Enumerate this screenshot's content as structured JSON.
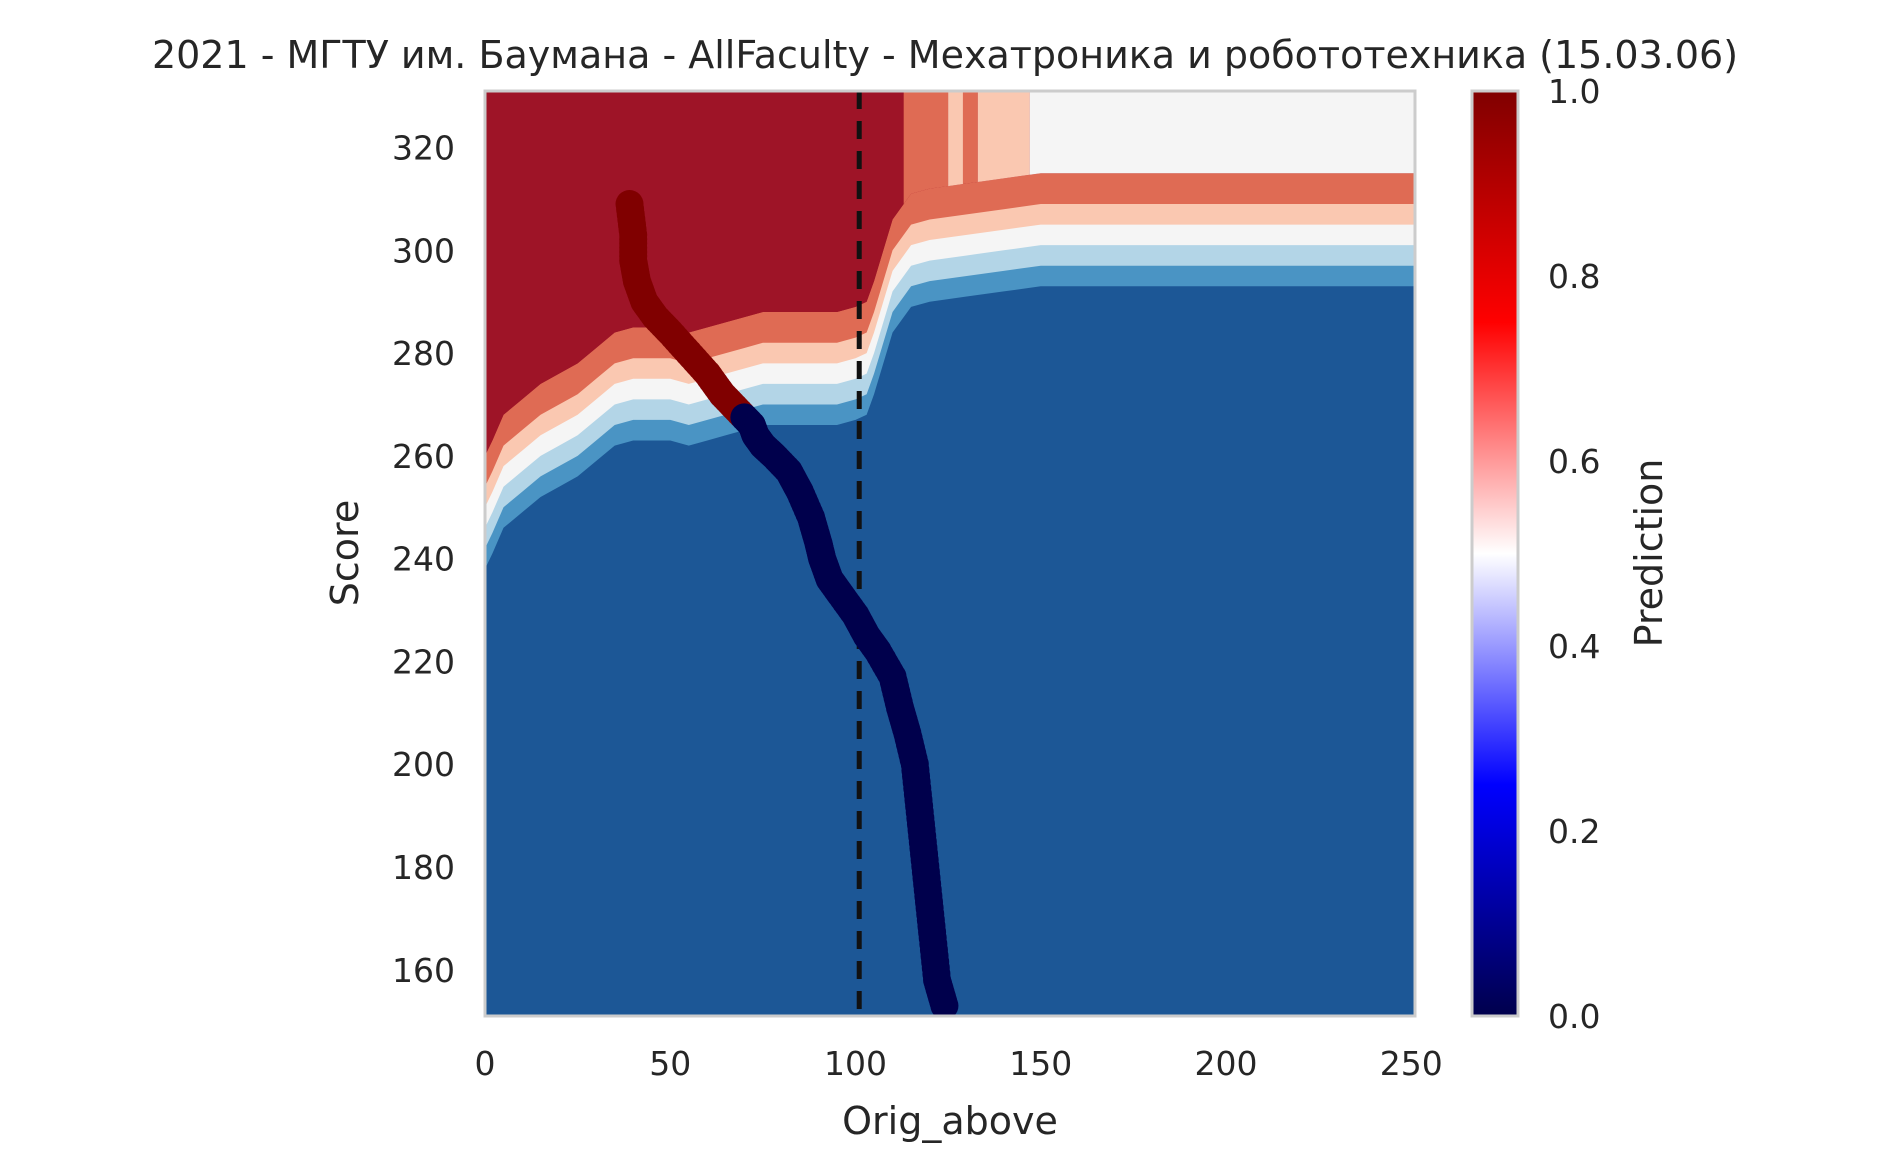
{
  "chart_data": {
    "type": "heatmap",
    "title": "2021 - МГТУ им. Баумана - AllFaculty - Мехатроника и робототехника (15.03.06)",
    "xlabel": "Orig_above",
    "ylabel": "Score",
    "xlim": [
      0,
      251
    ],
    "ylim": [
      151,
      331
    ],
    "xticks": [
      0,
      50,
      100,
      150,
      200,
      250
    ],
    "yticks": [
      160,
      180,
      200,
      220,
      240,
      260,
      280,
      300,
      320
    ],
    "grid": false,
    "colorbar": {
      "label": "Prediction",
      "range": [
        0,
        1
      ],
      "ticks": [
        0.0,
        0.2,
        0.4,
        0.6,
        0.8,
        1.0
      ],
      "tick_labels": [
        "0.0",
        "0.2",
        "0.4",
        "0.6",
        "0.8",
        "1.0"
      ],
      "colormap": "seismic",
      "colors": [
        "#00004c",
        "#0000ff",
        "#ffffff",
        "#ff0000",
        "#800000"
      ]
    },
    "contour": {
      "colormap": "RdBu_r",
      "level_colors": [
        "#1c5796",
        "#4a94c4",
        "#b3d5e7",
        "#f5f5f5",
        "#fac8b1",
        "#df6b54",
        "#9e1427"
      ],
      "lowest_boundary": {
        "x": [
          0,
          2,
          5,
          10,
          15,
          20,
          25,
          30,
          35,
          40,
          45,
          50,
          55,
          60,
          65,
          70,
          75,
          80,
          85,
          90,
          95,
          100,
          103,
          105,
          110,
          115,
          120,
          130,
          140,
          150,
          160,
          180,
          200,
          220,
          240,
          251
        ],
        "y": [
          238,
          241,
          246,
          249,
          252,
          254,
          256,
          259,
          262,
          263,
          263,
          263,
          262,
          263,
          264,
          265,
          266,
          266,
          266,
          266,
          266,
          267,
          268,
          272,
          284,
          289,
          290,
          291,
          292,
          293,
          293,
          293,
          293,
          293,
          293,
          293
        ]
      },
      "level_offsets": [
        0,
        4,
        8,
        12,
        16,
        22
      ],
      "top_region_columns": [
        {
          "from": 0,
          "to": 113,
          "level": 6
        },
        {
          "from": 113,
          "to": 125,
          "level": 5
        },
        {
          "from": 125,
          "to": 129,
          "level": 4
        },
        {
          "from": 129,
          "to": 133,
          "level": 5
        },
        {
          "from": 133,
          "to": 147,
          "level": 4
        },
        {
          "from": 147,
          "to": 251,
          "level": 3
        }
      ]
    },
    "reference_line": {
      "x": 101,
      "style": "dashed",
      "color": "#111111"
    },
    "trajectory": {
      "x": [
        39,
        40,
        40,
        41,
        43,
        46,
        50,
        55,
        60,
        64,
        68,
        72,
        73,
        75,
        78,
        82,
        85,
        88,
        90,
        91,
        93,
        96,
        100,
        103,
        106,
        110,
        112,
        114,
        116,
        117,
        118,
        119,
        120,
        121,
        122,
        124
      ],
      "y": [
        309,
        303,
        298,
        294,
        290,
        287,
        284,
        280,
        276,
        272,
        269,
        266,
        264,
        262,
        260,
        257,
        253,
        248,
        243,
        240,
        236,
        233,
        229,
        225,
        222,
        217,
        211,
        206,
        200,
        193,
        186,
        179,
        172,
        165,
        158,
        153
      ],
      "prediction": [
        1,
        1,
        1,
        1,
        1,
        1,
        1,
        1,
        1,
        1,
        1,
        0,
        0,
        0,
        0,
        0,
        0,
        0,
        0,
        0,
        0,
        0,
        0,
        0,
        0,
        0,
        0,
        0,
        0,
        0,
        0,
        0,
        0,
        0,
        0,
        0
      ]
    }
  }
}
